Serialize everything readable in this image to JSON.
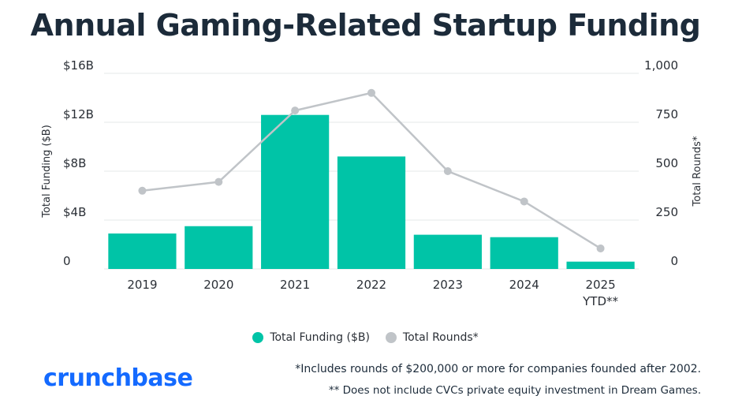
{
  "title": "Annual Gaming-Related Startup Funding",
  "colors": {
    "funding": "#00c4a7",
    "rounds": "#c0c4c8",
    "title": "#1c2b3a",
    "brand": "#146aff"
  },
  "chart_data": {
    "type": "bar",
    "title": "Annual Gaming-Related Startup Funding",
    "categories": [
      "2019",
      "2020",
      "2021",
      "2022",
      "2023",
      "2024",
      "2025\nYTD**"
    ],
    "category_labels": [
      [
        "2019"
      ],
      [
        "2020"
      ],
      [
        "2021"
      ],
      [
        "2022"
      ],
      [
        "2023"
      ],
      [
        "2024"
      ],
      [
        "2025",
        "YTD**"
      ]
    ],
    "series": [
      {
        "name": "Total Funding ($B)",
        "type": "bar",
        "axis": "left",
        "values": [
          2.9,
          3.5,
          12.6,
          9.2,
          2.8,
          2.6,
          0.6
        ]
      },
      {
        "name": "Total Rounds*",
        "type": "line",
        "axis": "right",
        "values": [
          400,
          445,
          810,
          900,
          500,
          345,
          105
        ]
      }
    ],
    "ylabel": "Total Funding ($B)",
    "y2label": "Total Rounds*",
    "ylim": [
      0,
      16
    ],
    "y2lim": [
      0,
      1000
    ],
    "yticks": [
      "0",
      "$4B",
      "$8B",
      "$12B",
      "$16B"
    ],
    "y2ticks": [
      "0",
      "250",
      "500",
      "750",
      "1,000"
    ],
    "grid": true,
    "legend_position": "bottom-center"
  },
  "legend": {
    "funding_label": "Total Funding ($B)",
    "rounds_label": "Total Rounds*"
  },
  "logo_text": "crunchbase",
  "footnotes": {
    "line1": "*Includes rounds of $200,000 or more for companies founded after 2002.",
    "line2": "** Does not include CVCs private equity investment in Dream Games."
  }
}
